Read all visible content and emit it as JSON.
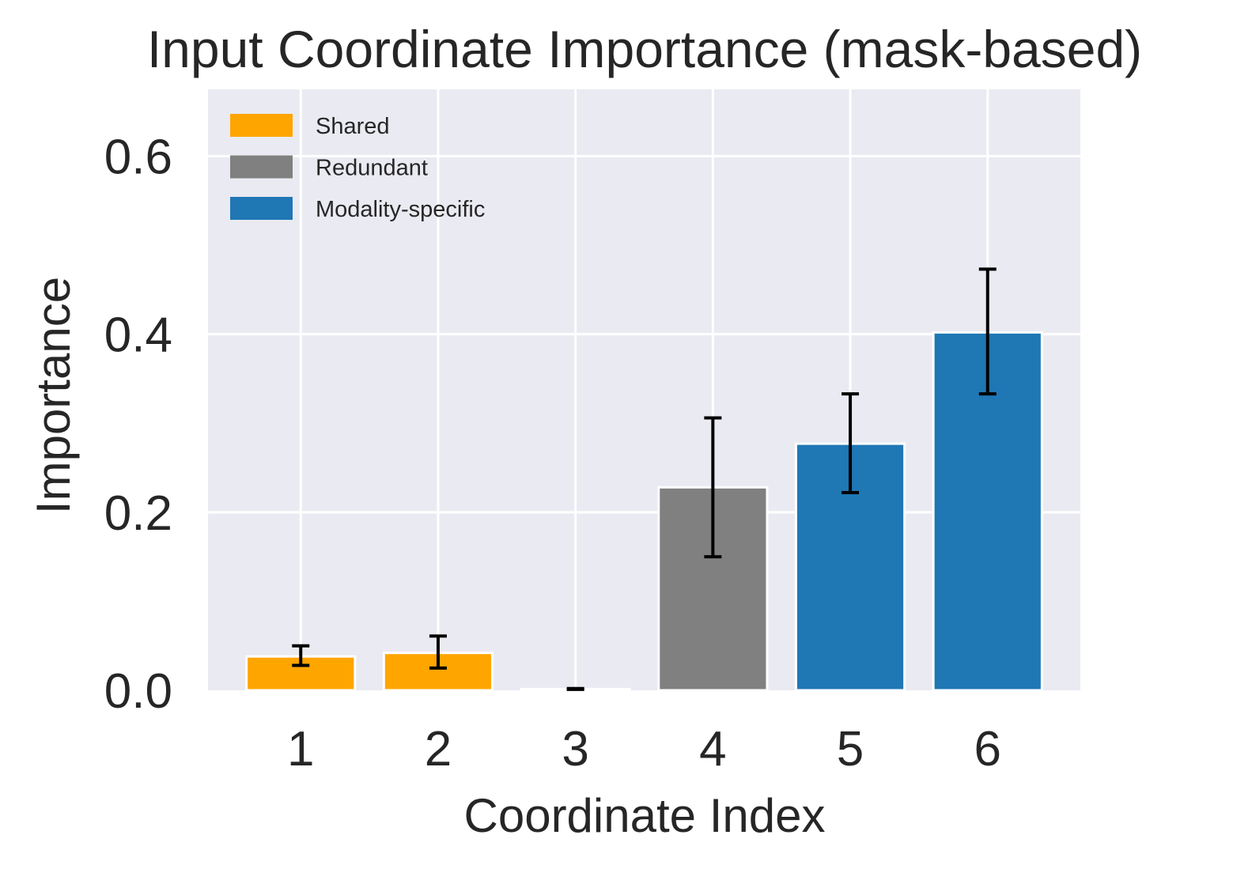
{
  "chart_data": {
    "type": "bar",
    "title": "Input Coordinate Importance (mask-based)",
    "xlabel": "Coordinate Index",
    "ylabel": "Importance",
    "categories": [
      "1",
      "2",
      "3",
      "4",
      "5",
      "6"
    ],
    "values": [
      0.038,
      0.042,
      0.001,
      0.228,
      0.277,
      0.402
    ],
    "error_low": [
      0.028,
      0.025,
      0.001,
      0.15,
      0.222,
      0.333
    ],
    "error_high": [
      0.05,
      0.061,
      0.002,
      0.306,
      0.333,
      0.473
    ],
    "bar_groups": [
      "Shared",
      "Shared",
      "Shared",
      "Redundant",
      "Modality-specific",
      "Modality-specific"
    ],
    "ylim": [
      0,
      0.675
    ],
    "yticks": [
      "0.0",
      "0.2",
      "0.4",
      "0.6"
    ],
    "ytick_values": [
      0,
      0.2,
      0.4,
      0.6
    ],
    "grid": true,
    "legend_placement": "top-left",
    "legend": [
      {
        "label": "Shared",
        "color": "#ffa500"
      },
      {
        "label": "Redundant",
        "color": "#808080"
      },
      {
        "label": "Modality-specific",
        "color": "#1f77b4"
      }
    ],
    "colors": {
      "plot_background": "#eaeaf2",
      "grid": "#ffffff",
      "text": "#262626",
      "error_bar": "#000000"
    }
  }
}
